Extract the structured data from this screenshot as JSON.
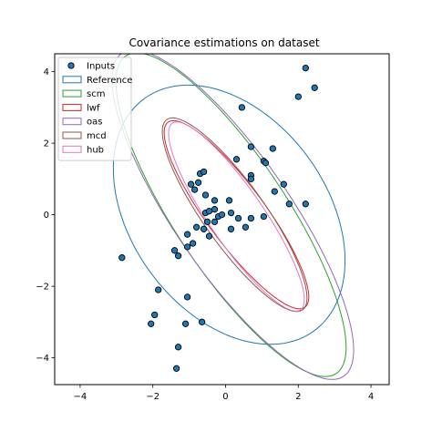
{
  "chart_data": {
    "type": "scatter",
    "title": "Covariance estimations on dataset",
    "xlabel": "",
    "ylabel": "",
    "xlim": [
      -4.7,
      4.5
    ],
    "ylim": [
      -4.75,
      4.5
    ],
    "xticks": [
      -4,
      -2,
      0,
      2,
      4
    ],
    "yticks": [
      -4,
      -2,
      0,
      2,
      4
    ],
    "xtick_labels": [
      "−4",
      "−2",
      "0",
      "2",
      "4"
    ],
    "ytick_labels": [
      "−4",
      "−2",
      "0",
      "2",
      "4"
    ],
    "grid": false,
    "legend_placement": "top-left",
    "series": [
      {
        "name": "Inputs",
        "kind": "points",
        "color": "#1f77b4",
        "edge_color": "#000000",
        "points": [
          [
            2.2,
            4.1
          ],
          [
            2.45,
            3.55
          ],
          [
            2.0,
            3.3
          ],
          [
            0.45,
            3.0
          ],
          [
            1.3,
            1.85
          ],
          [
            0.7,
            1.9
          ],
          [
            0.3,
            1.55
          ],
          [
            1.05,
            1.5
          ],
          [
            1.1,
            1.45
          ],
          [
            0.7,
            1.1
          ],
          [
            0.7,
            1.0
          ],
          [
            1.6,
            0.85
          ],
          [
            1.35,
            0.65
          ],
          [
            1.75,
            0.3
          ],
          [
            2.2,
            0.3
          ],
          [
            -0.7,
            1.15
          ],
          [
            -0.6,
            1.2
          ],
          [
            -0.75,
            0.9
          ],
          [
            -0.95,
            0.85
          ],
          [
            -0.85,
            0.7
          ],
          [
            -0.55,
            0.55
          ],
          [
            -0.3,
            0.4
          ],
          [
            0.1,
            0.4
          ],
          [
            -0.55,
            0.05
          ],
          [
            -0.45,
            0.1
          ],
          [
            -0.3,
            0.15
          ],
          [
            -0.2,
            -0.05
          ],
          [
            -0.1,
            0.0
          ],
          [
            0.15,
            0.05
          ],
          [
            0.35,
            -0.1
          ],
          [
            0.7,
            -0.1
          ],
          [
            1.05,
            -0.05
          ],
          [
            -0.5,
            -0.2
          ],
          [
            -0.3,
            -0.2
          ],
          [
            -0.8,
            -0.35
          ],
          [
            -0.6,
            -0.4
          ],
          [
            0.15,
            -0.4
          ],
          [
            0.55,
            -0.35
          ],
          [
            -0.45,
            -0.6
          ],
          [
            -1.05,
            -0.55
          ],
          [
            -0.9,
            -0.8
          ],
          [
            -1.05,
            -0.9
          ],
          [
            -1.4,
            -1.0
          ],
          [
            -1.3,
            -1.15
          ],
          [
            -2.85,
            -1.2
          ],
          [
            -1.85,
            -2.1
          ],
          [
            -1.05,
            -2.3
          ],
          [
            -1.95,
            -2.8
          ],
          [
            -2.05,
            -3.05
          ],
          [
            -1.1,
            -3.05
          ],
          [
            -0.65,
            -3.0
          ],
          [
            -1.3,
            -3.7
          ],
          [
            -1.35,
            -4.3
          ]
        ]
      },
      {
        "name": "Reference",
        "kind": "ellipse",
        "color": "#1f77b4",
        "center": [
          0.1,
          0.0
        ],
        "rx": 2.7,
        "ry": 4.0,
        "angle": 35
      },
      {
        "name": "scm",
        "kind": "ellipse",
        "color": "#2ca02c",
        "center": [
          0.15,
          0.0
        ],
        "rx": 1.55,
        "ry": 5.3,
        "angle": 33
      },
      {
        "name": "lwf",
        "kind": "ellipse",
        "color": "#d62728",
        "center": [
          0.3,
          0.0
        ],
        "rx": 0.8,
        "ry": 3.2,
        "angle": 36
      },
      {
        "name": "oas",
        "kind": "ellipse",
        "color": "#9467bd",
        "center": [
          0.2,
          0.0
        ],
        "rx": 1.6,
        "ry": 5.45,
        "angle": 34
      },
      {
        "name": "mcd",
        "kind": "ellipse",
        "color": "#8c564b",
        "center": [
          0.25,
          0.0
        ],
        "rx": 0.85,
        "ry": 3.25,
        "angle": 35
      },
      {
        "name": "hub",
        "kind": "ellipse",
        "color": "#e377c2",
        "center": [
          0.3,
          -0.05
        ],
        "rx": 0.75,
        "ry": 3.15,
        "angle": 34
      }
    ]
  }
}
